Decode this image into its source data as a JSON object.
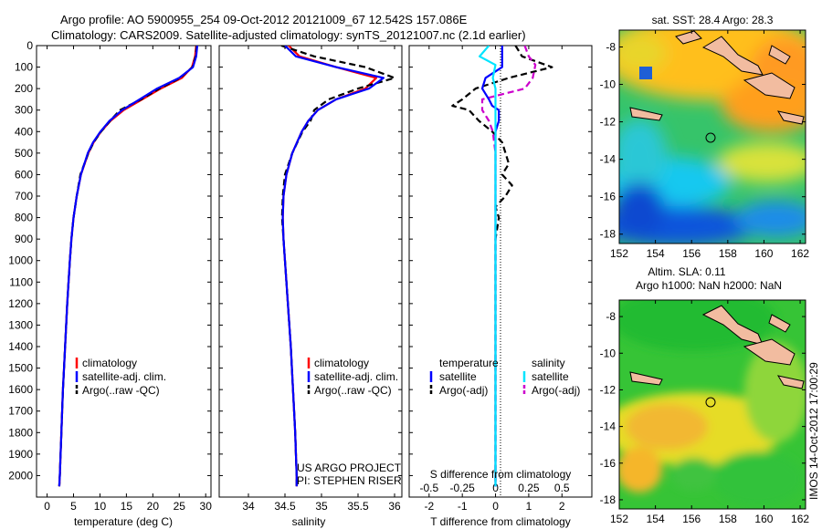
{
  "header": {
    "line1": "Argo profile: AO 5900955_254 09-Oct-2012 20121009_67 12.542S 157.086E",
    "line2": "Climatology: CARS2009. Satellite-adjusted climatology: synTS_20121007.nc (2.1d earlier)"
  },
  "colors": {
    "climatology": "#ff0000",
    "satellite": "#0000ff",
    "argo": "#000000",
    "sal_sat": "#00e5ff",
    "sal_argo": "#cc00cc",
    "land": "#f2bca0"
  },
  "chart_data": [
    {
      "type": "line",
      "id": "temperature",
      "xlabel": "temperature (deg C)",
      "ylabel": "depth",
      "xlim": [
        -2,
        31
      ],
      "ylim": [
        0,
        2100
      ],
      "xticks": [
        0,
        5,
        10,
        15,
        20,
        25,
        30
      ],
      "yticks": [
        0,
        100,
        200,
        300,
        400,
        500,
        600,
        700,
        800,
        900,
        1000,
        1100,
        1200,
        1300,
        1400,
        1500,
        1600,
        1700,
        1800,
        1900,
        2000
      ],
      "depths": [
        0,
        50,
        100,
        150,
        200,
        250,
        300,
        350,
        400,
        450,
        500,
        600,
        700,
        800,
        900,
        1000,
        1200,
        1400,
        1600,
        1800,
        2000,
        2050
      ],
      "series": [
        {
          "name": "climatology",
          "values": [
            28.2,
            28.0,
            27.4,
            25.5,
            21.5,
            18.0,
            14.5,
            12.0,
            10.2,
            8.8,
            7.8,
            6.4,
            5.6,
            5.0,
            4.6,
            4.3,
            3.8,
            3.4,
            3.0,
            2.7,
            2.4,
            2.3
          ]
        },
        {
          "name": "satellite-adj. clim.",
          "values": [
            28.4,
            28.2,
            27.6,
            25.0,
            20.8,
            17.5,
            14.2,
            11.8,
            10.1,
            8.7,
            7.7,
            6.4,
            5.6,
            5.0,
            4.6,
            4.3,
            3.8,
            3.4,
            3.0,
            2.7,
            2.4,
            2.3
          ]
        },
        {
          "name": "Argo(..raw -QC)",
          "values": [
            28.3,
            28.1,
            27.5,
            25.2,
            21.2,
            17.8,
            13.8,
            11.9,
            10.2,
            8.8,
            7.8,
            6.3,
            5.6,
            5.0,
            4.6,
            4.3,
            3.8,
            3.4,
            3.0,
            2.7,
            2.4,
            2.3
          ]
        }
      ],
      "legend": [
        "climatology",
        "satellite-adj. clim.",
        "Argo(..raw -QC)"
      ],
      "legend_position": "lower-right"
    },
    {
      "type": "line",
      "id": "salinity",
      "xlabel": "salinity",
      "xlim": [
        33.6,
        36.1
      ],
      "ylim": [
        0,
        2100
      ],
      "xticks": [
        34,
        34.5,
        35,
        35.5,
        36
      ],
      "depths": [
        0,
        50,
        100,
        150,
        200,
        250,
        300,
        350,
        400,
        500,
        600,
        700,
        800,
        900,
        1000,
        1200,
        1400,
        1600,
        1800,
        2000,
        2050
      ],
      "series": [
        {
          "name": "climatology",
          "values": [
            34.55,
            34.7,
            35.2,
            35.75,
            35.6,
            35.2,
            34.95,
            34.82,
            34.73,
            34.6,
            34.52,
            34.48,
            34.47,
            34.48,
            34.5,
            34.54,
            34.58,
            34.61,
            34.64,
            34.66,
            34.66
          ]
        },
        {
          "name": "satellite-adj. clim.",
          "values": [
            34.5,
            34.65,
            35.2,
            35.85,
            35.65,
            35.2,
            34.95,
            34.82,
            34.73,
            34.6,
            34.52,
            34.48,
            34.47,
            34.48,
            34.5,
            34.54,
            34.58,
            34.61,
            34.64,
            34.66,
            34.66
          ]
        },
        {
          "name": "Argo(..raw -QC)",
          "values": [
            34.45,
            34.9,
            35.6,
            36.0,
            35.5,
            35.1,
            34.9,
            34.85,
            34.74,
            34.6,
            34.5,
            34.47,
            34.46,
            34.48,
            34.5,
            34.54,
            34.58,
            34.61,
            34.64,
            34.66,
            34.66
          ]
        }
      ],
      "legend": [
        "climatology",
        "satellite-adj. clim.",
        "Argo(..raw -QC)"
      ],
      "annotation": [
        "US ARGO PROJECT",
        "PI: STEPHEN RISER"
      ]
    },
    {
      "type": "line",
      "id": "difference",
      "xlabel": "T difference from climatology",
      "xlabel2": "S difference from climatology",
      "xlim": [
        -2.6,
        2.9
      ],
      "ylim": [
        0,
        2100
      ],
      "xticks": [
        -2,
        -1,
        0,
        1,
        2
      ],
      "xticks_s": [
        -0.5,
        -0.25,
        0,
        0.25,
        0.5
      ],
      "depths_t": [
        0,
        50,
        100,
        150,
        200,
        250,
        280,
        300,
        350,
        400,
        450,
        500,
        550,
        600,
        650,
        700,
        750,
        800,
        900,
        1000,
        1200,
        1500,
        2000,
        2050
      ],
      "depths_s": [
        0,
        50,
        90,
        150,
        200,
        250,
        300,
        350,
        400,
        500,
        600,
        700,
        800,
        1000,
        1500,
        2000,
        2050
      ],
      "series": [
        {
          "name": "temperature satellite",
          "group": "t",
          "values": [
            0.2,
            0.2,
            0.2,
            -0.3,
            -0.4,
            -0.2,
            -0.1,
            0.1,
            0.1,
            0.0,
            0.0,
            0.0,
            0.0,
            0.0,
            0.0,
            0.0,
            0.0,
            0.0,
            0.0,
            0.0,
            0.0,
            0.0,
            0.0,
            0.0
          ]
        },
        {
          "name": "temperature Argo(-adj)",
          "group": "t",
          "values": [
            0.6,
            0.8,
            1.7,
            0.4,
            -0.6,
            -1.0,
            -1.3,
            -0.8,
            -0.5,
            -0.1,
            0.2,
            0.3,
            0.4,
            0.2,
            0.5,
            0.3,
            0.0,
            0.1,
            0.0,
            0.0,
            0.0,
            0.0,
            0.0,
            0.0
          ]
        },
        {
          "name": "salinity satellite",
          "group": "s",
          "values": [
            -0.05,
            -0.12,
            0.0,
            -0.02,
            0.0,
            0.0,
            0.0,
            0.0,
            0.0,
            0.0,
            0.0,
            0.0,
            0.0,
            0.0,
            0.0,
            0.0,
            0.0
          ]
        },
        {
          "name": "salinity Argo(-adj)",
          "group": "s",
          "values": [
            0.22,
            0.25,
            0.3,
            0.28,
            0.22,
            -0.1,
            -0.1,
            -0.05,
            -0.02,
            0.0,
            0.0,
            0.0,
            0.0,
            0.0,
            0.0,
            0.0,
            0.0
          ]
        }
      ],
      "legend": [
        "temperature",
        "satellite",
        "Argo(-adj)",
        "salinity",
        "satellite",
        "Argo(-adj)"
      ]
    },
    {
      "type": "heatmap",
      "id": "sst-map",
      "title": "sat. SST: 28.4 Argo: 28.3",
      "xlim": [
        152,
        162.3
      ],
      "ylim": [
        -18.5,
        -7.1
      ],
      "xticks": [
        152,
        154,
        156,
        158,
        160,
        162
      ],
      "yticks": [
        -8,
        -10,
        -12,
        -14,
        -16,
        -18
      ],
      "marker": [
        157.086,
        -12.542
      ]
    },
    {
      "type": "heatmap",
      "id": "sla-map",
      "title": "Altim. SLA: 0.11",
      "subtitle": "Argo h1000: NaN h2000: NaN",
      "xlim": [
        152,
        162.3
      ],
      "ylim": [
        -18.5,
        -7.1
      ],
      "xticks": [
        152,
        154,
        156,
        158,
        160,
        162
      ],
      "yticks": [
        -8,
        -10,
        -12,
        -14,
        -16,
        -18
      ],
      "marker": [
        157.086,
        -12.542
      ]
    }
  ],
  "footer": {
    "stamp": "IMOS 14-Oct-2012 17:00:29"
  }
}
